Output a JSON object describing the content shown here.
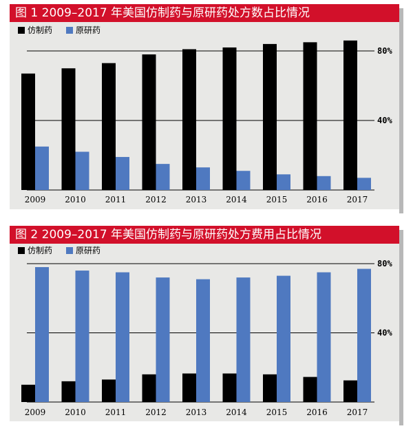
{
  "colors": {
    "title_bg": "#d2102a",
    "panel_bg": "#e8e8e6",
    "generic": "#000000",
    "brand": "#4f79c0",
    "grid": "#000000"
  },
  "chart_data": [
    {
      "type": "bar",
      "title": "图 1   2009–2017 年美国仿制药与原研药处方数占比情况",
      "categories": [
        "2009",
        "2010",
        "2011",
        "2012",
        "2013",
        "2014",
        "2015",
        "2016",
        "2017"
      ],
      "series": [
        {
          "name": "仿制药",
          "color": "#000000",
          "values": [
            67,
            70,
            73,
            78,
            81,
            82,
            84,
            85,
            86
          ]
        },
        {
          "name": "原研药",
          "color": "#4f79c0",
          "values": [
            25,
            22,
            19,
            15,
            13,
            11,
            9,
            8,
            7
          ]
        }
      ],
      "ylim": [
        0,
        100
      ],
      "yticks": [
        {
          "value": 40,
          "label": "40%"
        },
        {
          "value": 80,
          "label": "80%"
        }
      ],
      "legend": "top-left",
      "grid": true
    },
    {
      "type": "bar",
      "title": "图 2   2009–2017 年美国仿制药与原研药处方费用占比情况",
      "categories": [
        "2009",
        "2010",
        "2011",
        "2012",
        "2013",
        "2014",
        "2015",
        "2016",
        "2017"
      ],
      "series": [
        {
          "name": "仿制药",
          "color": "#000000",
          "values": [
            10,
            12,
            13,
            16,
            16.5,
            16.5,
            16,
            14.5,
            12.5
          ]
        },
        {
          "name": "原研药",
          "color": "#4f79c0",
          "values": [
            78,
            76,
            75,
            72,
            71,
            72,
            73,
            75,
            77
          ]
        }
      ],
      "ylim": [
        0,
        100
      ],
      "yticks": [
        {
          "value": 40,
          "label": "40%"
        },
        {
          "value": 80,
          "label": "80%"
        }
      ],
      "legend": "top-left",
      "grid": true
    }
  ]
}
